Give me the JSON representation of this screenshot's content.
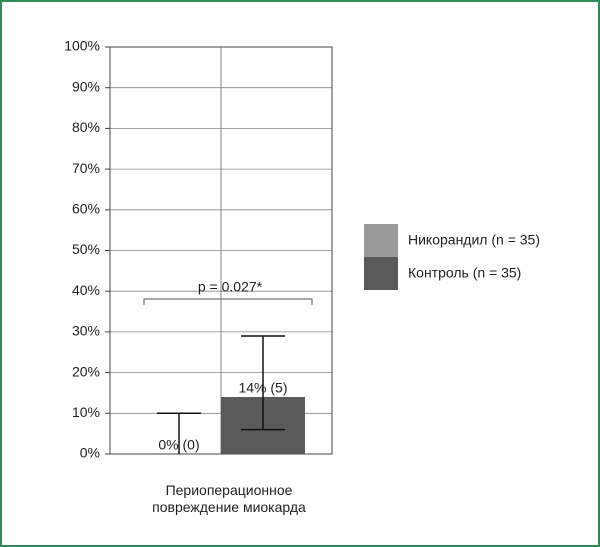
{
  "chart_data": {
    "type": "bar",
    "categories": [
      "Периоперационное повреждение миокарда"
    ],
    "series": [
      {
        "name": "Никорандил (n = 35)",
        "color": "#9a9a9a",
        "values": [
          0
        ],
        "value_labels": [
          "0% (0)"
        ],
        "error_low": [
          0
        ],
        "error_high": [
          10
        ]
      },
      {
        "name": "Контроль (n = 35)",
        "color": "#5a5a5a",
        "values": [
          14
        ],
        "value_labels": [
          "14% (5)"
        ],
        "error_low": [
          6
        ],
        "error_high": [
          29
        ]
      }
    ],
    "ylim": [
      0,
      100
    ],
    "yticks": [
      {
        "value": 0,
        "label": "0%"
      },
      {
        "value": 10,
        "label": "10%"
      },
      {
        "value": 20,
        "label": "20%"
      },
      {
        "value": 30,
        "label": "30%"
      },
      {
        "value": 40,
        "label": "40%"
      },
      {
        "value": 50,
        "label": "50%"
      },
      {
        "value": 60,
        "label": "60%"
      },
      {
        "value": 70,
        "label": "70%"
      },
      {
        "value": 80,
        "label": "80%"
      },
      {
        "value": 90,
        "label": "90%"
      },
      {
        "value": 100,
        "label": "100%"
      }
    ],
    "grid": true,
    "legend": "right",
    "annotation": "p = 0.027*"
  }
}
